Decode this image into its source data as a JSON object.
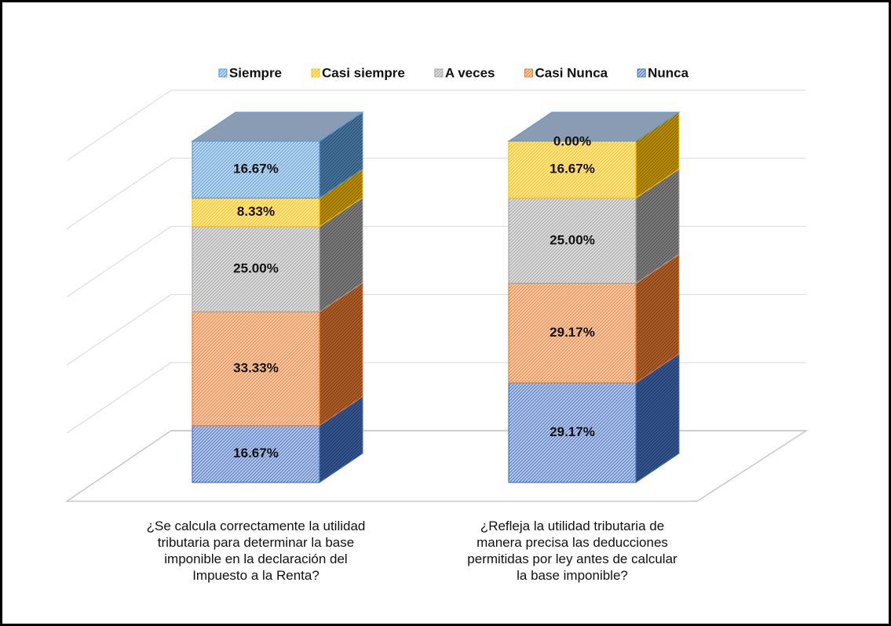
{
  "chart_data": {
    "type": "bar3d_stacked",
    "categories": [
      "¿Se calcula correctamente la utilidad\ntributaria para determinar la base\nimponible  en la declaración del\nImpuesto a la Renta?",
      "¿Refleja la utilidad tributaria de\nmanera precisa las deducciones\npermitidas por ley antes de calcular\nla base imponible?"
    ],
    "series": [
      {
        "name": "Nunca",
        "color": "#4472c4",
        "values": [
          16.67,
          29.17
        ],
        "value_labels": [
          "16.67%",
          "29.17%"
        ]
      },
      {
        "name": "Casi Nunca",
        "color": "#ed7d31",
        "values": [
          33.33,
          29.17
        ],
        "value_labels": [
          "33.33%",
          "29.17%"
        ]
      },
      {
        "name": "A veces",
        "color": "#a5a5a5",
        "values": [
          25.0,
          25.0
        ],
        "value_labels": [
          "25.00%",
          "25.00%"
        ]
      },
      {
        "name": "Casi siempre",
        "color": "#ffc000",
        "values": [
          8.33,
          16.67
        ],
        "value_labels": [
          "8.33%",
          "16.67%"
        ]
      },
      {
        "name": "Siempre",
        "color": "#5b9bd5",
        "values": [
          16.67,
          0.0
        ],
        "value_labels": [
          "16.67%",
          "0.00%"
        ]
      }
    ],
    "legend_order": "reverse",
    "legend_position": "top",
    "ylim": [
      0,
      100
    ],
    "yticks": [
      0,
      20,
      40,
      60,
      80,
      100
    ],
    "grid": true
  }
}
